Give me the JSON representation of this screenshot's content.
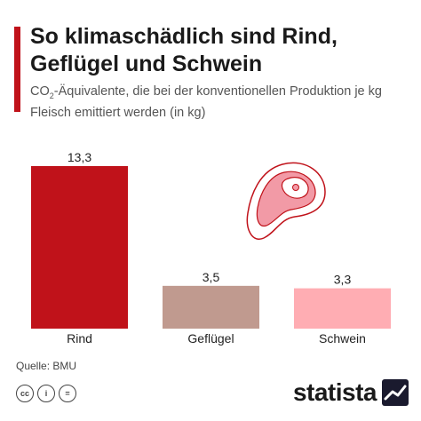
{
  "header": {
    "title": "So klimaschädlich sind Rind, Geflügel und Schwein",
    "subtitle_before": "CO",
    "subtitle_sub": "2",
    "subtitle_after": "-Äquivalente, die bei der konventionellen Produktion je kg Fleisch emittiert werden (in kg)",
    "accent_color": "#c0121a"
  },
  "chart_data": {
    "type": "bar",
    "categories": [
      "Rind",
      "Geflügel",
      "Schwein"
    ],
    "values": [
      13.3,
      3.5,
      3.3
    ],
    "value_labels": [
      "13,3",
      "3,5",
      "3,3"
    ],
    "colors": [
      "#c0121a",
      "#c09a8f",
      "#ffadb3"
    ],
    "ylim": [
      0,
      13.3
    ],
    "grid": false,
    "legend": "none"
  },
  "illustration": {
    "icon": "meat-steak-icon"
  },
  "footer": {
    "source": "Quelle: BMU",
    "license_icons": [
      "creative-commons-icon",
      "attribution-icon",
      "no-derivatives-icon"
    ],
    "cc_glyph": "cc",
    "by_glyph": "i",
    "nd_glyph": "=",
    "brand": "statista"
  }
}
